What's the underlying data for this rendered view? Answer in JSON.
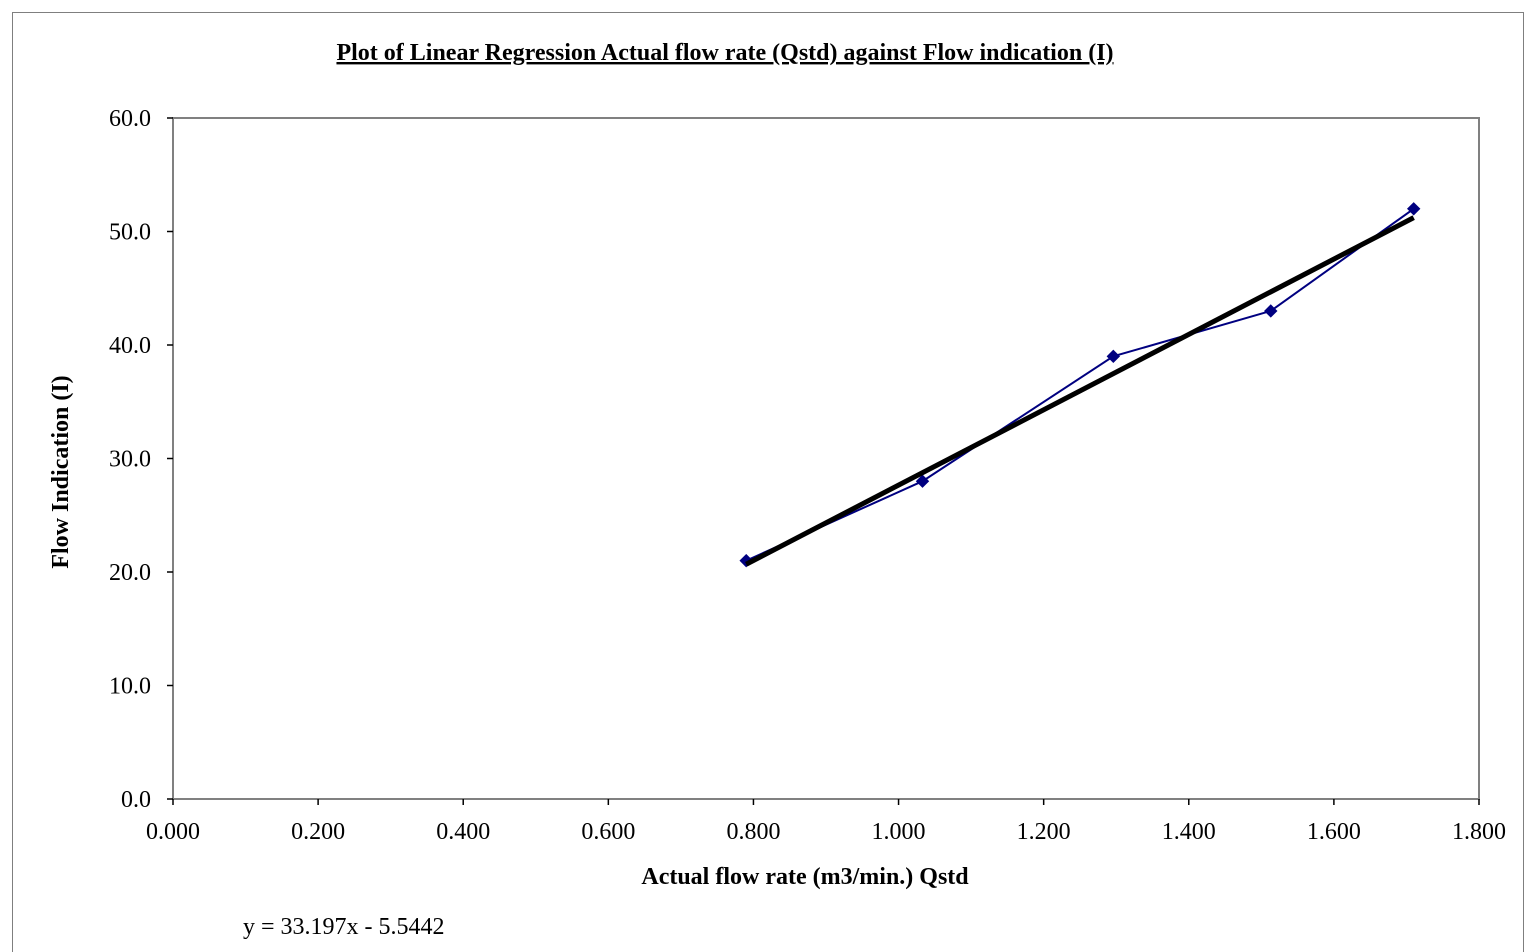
{
  "chart_data": {
    "type": "scatter",
    "title": "Plot of Linear Regression Actual flow rate (Qstd) against Flow indication (I)",
    "xlabel": "Actual flow rate (m3/min.) Qstd",
    "ylabel": "Flow Indication (I)",
    "xlim": [
      0.0,
      1.8
    ],
    "ylim": [
      0.0,
      60.0
    ],
    "x_ticks": [
      "0.000",
      "0.200",
      "0.400",
      "0.600",
      "0.800",
      "1.000",
      "1.200",
      "1.400",
      "1.600",
      "1.800"
    ],
    "y_ticks": [
      "0.0",
      "10.0",
      "20.0",
      "30.0",
      "40.0",
      "50.0",
      "60.0"
    ],
    "series": [
      {
        "x": [
          0.79,
          1.033,
          1.296,
          1.513,
          1.71
        ],
        "y": [
          21.0,
          28.0,
          39.0,
          43.0,
          52.0
        ],
        "color": "#000080",
        "marker": "diamond",
        "line": true
      }
    ],
    "trendline": {
      "slope": 33.197,
      "intercept": -5.5442,
      "x_range": [
        0.79,
        1.71
      ],
      "color": "#000000",
      "equation": "y = 33.197x - 5.5442"
    },
    "grid": false,
    "legend": "none"
  }
}
